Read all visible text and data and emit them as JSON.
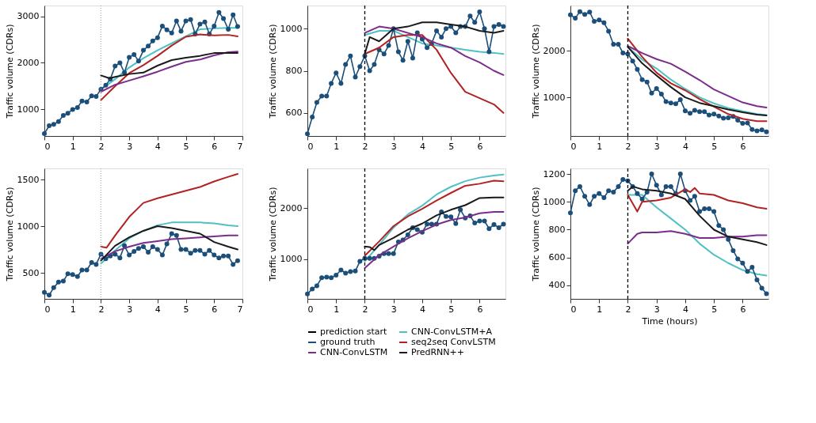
{
  "chart_data": [
    {
      "type": "line",
      "ylabel": "Traffic volume (CDRs)",
      "xlim": [
        0,
        7
      ],
      "xticks": [
        0,
        1,
        2,
        3,
        4,
        5,
        6,
        7
      ],
      "ylim": [
        430,
        3230
      ],
      "yticks": [
        1000,
        2000,
        3000
      ],
      "x": [
        0,
        0.17,
        0.33,
        0.5,
        0.67,
        0.83,
        1,
        1.17,
        1.33,
        1.5,
        1.67,
        1.83,
        2,
        2.17,
        2.33,
        2.5,
        2.67,
        2.83,
        3,
        3.17,
        3.33,
        3.5,
        3.67,
        3.83,
        4,
        4.17,
        4.33,
        4.5,
        4.67,
        4.83,
        5,
        5.17,
        5.33,
        5.5,
        5.67,
        5.83,
        6,
        6.17,
        6.33,
        6.5,
        6.67,
        6.83
      ],
      "ref_lines": [
        {
          "axis": "x",
          "value": 2,
          "color": "#aaaaaa",
          "line_style": "dotted"
        }
      ],
      "series": [
        {
          "color": "#4fc1c4",
          "x": [
            2,
            2.5,
            3,
            3.5,
            4,
            4.5,
            5,
            5.5,
            6,
            6.5,
            6.83
          ],
          "values": [
            1430,
            1650,
            1900,
            2100,
            2270,
            2420,
            2570,
            2720,
            2740,
            2750,
            2750
          ]
        },
        {
          "color": "#1b4f7a",
          "marker": "circle",
          "values": [
            480,
            650,
            680,
            740,
            870,
            920,
            1000,
            1040,
            1180,
            1160,
            1290,
            1280,
            1430,
            1520,
            1650,
            1930,
            2000,
            1790,
            2120,
            2180,
            2040,
            2270,
            2360,
            2470,
            2540,
            2790,
            2710,
            2640,
            2900,
            2680,
            2900,
            2930,
            2620,
            2830,
            2880,
            2620,
            2790,
            3080,
            2950,
            2720,
            3030,
            2780
          ]
        },
        {
          "color": "#b22222",
          "x": [
            2,
            2.5,
            3,
            3.5,
            4,
            4.5,
            5,
            5.5,
            6,
            6.5,
            6.83
          ],
          "values": [
            1200,
            1500,
            1780,
            1950,
            2150,
            2370,
            2560,
            2610,
            2590,
            2600,
            2570
          ]
        },
        {
          "color": "#7b2d8b",
          "x": [
            2,
            2.5,
            3,
            3.5,
            4,
            4.5,
            5,
            5.5,
            6,
            6.5,
            6.83
          ],
          "values": [
            1380,
            1530,
            1620,
            1710,
            1810,
            1920,
            2020,
            2070,
            2160,
            2230,
            2240
          ]
        },
        {
          "color": "#1a1a1a",
          "x": [
            2,
            2.3,
            2.5,
            3,
            3.5,
            4,
            4.5,
            5,
            5.5,
            6,
            6.5,
            6.83
          ],
          "values": [
            1730,
            1670,
            1700,
            1760,
            1790,
            1940,
            2060,
            2110,
            2150,
            2210,
            2210,
            2210
          ]
        }
      ]
    },
    {
      "type": "line",
      "ylabel": "Traffic volume (CDRs)",
      "xlim": [
        0,
        6.9
      ],
      "xticks": [
        0,
        1,
        2,
        3,
        4,
        5,
        6
      ],
      "ylim": [
        490,
        1110
      ],
      "yticks": [
        600,
        800,
        1000
      ],
      "x": [
        0,
        0.17,
        0.33,
        0.5,
        0.67,
        0.83,
        1,
        1.17,
        1.33,
        1.5,
        1.67,
        1.83,
        2,
        2.17,
        2.33,
        2.5,
        2.67,
        2.83,
        3,
        3.17,
        3.33,
        3.5,
        3.67,
        3.83,
        4,
        4.17,
        4.33,
        4.5,
        4.67,
        4.83,
        5,
        5.17,
        5.33,
        5.5,
        5.67,
        5.83,
        6,
        6.17,
        6.33,
        6.5,
        6.67,
        6.83
      ],
      "ref_lines": [
        {
          "axis": "x",
          "value": 2,
          "color": "#000000",
          "line_style": "dashed"
        }
      ],
      "series": [
        {
          "color": "#4fc1c4",
          "x": [
            2,
            2.5,
            3,
            3.5,
            4,
            4.5,
            5,
            5.5,
            6,
            6.5,
            6.83
          ],
          "values": [
            970,
            990,
            990,
            960,
            930,
            920,
            910,
            900,
            890,
            885,
            880
          ]
        },
        {
          "color": "#1b4f7a",
          "marker": "circle",
          "values": [
            500,
            580,
            650,
            680,
            680,
            740,
            790,
            740,
            830,
            870,
            770,
            820,
            870,
            800,
            830,
            900,
            880,
            920,
            1000,
            890,
            850,
            940,
            860,
            980,
            950,
            910,
            930,
            990,
            960,
            1000,
            1010,
            980,
            1010,
            1010,
            1060,
            1030,
            1080,
            1000,
            890,
            1010,
            1020,
            1010
          ]
        },
        {
          "color": "#b22222",
          "x": [
            2,
            2.5,
            3,
            3.5,
            4,
            4.5,
            5,
            5.5,
            6,
            6.5,
            6.83
          ],
          "values": [
            880,
            910,
            960,
            970,
            970,
            900,
            790,
            700,
            670,
            640,
            600
          ]
        },
        {
          "color": "#7b2d8b",
          "x": [
            2,
            2.5,
            3,
            3.5,
            4,
            4.5,
            5,
            5.5,
            6,
            6.5,
            6.83
          ],
          "values": [
            980,
            1010,
            1000,
            980,
            960,
            930,
            910,
            870,
            840,
            800,
            780
          ]
        },
        {
          "color": "#1a1a1a",
          "x": [
            2,
            2.17,
            2.5,
            3,
            3.5,
            4,
            4.5,
            5,
            5.5,
            6,
            6.5,
            6.83
          ],
          "values": [
            880,
            960,
            940,
            1000,
            1010,
            1030,
            1030,
            1020,
            1010,
            990,
            980,
            990
          ]
        }
      ]
    },
    {
      "type": "line",
      "ylabel": "Traffic volume (CDRs)",
      "xlim": [
        0,
        6.9
      ],
      "xticks": [
        0,
        1,
        2,
        3,
        4,
        5,
        6
      ],
      "ylim": [
        170,
        2970
      ],
      "yticks": [
        1000,
        2000
      ],
      "x": [
        0,
        0.17,
        0.33,
        0.5,
        0.67,
        0.83,
        1,
        1.17,
        1.33,
        1.5,
        1.67,
        1.83,
        2,
        2.17,
        2.33,
        2.5,
        2.67,
        2.83,
        3,
        3.17,
        3.33,
        3.5,
        3.67,
        3.83,
        4,
        4.17,
        4.33,
        4.5,
        4.67,
        4.83,
        5,
        5.17,
        5.33,
        5.5,
        5.67,
        5.83,
        6,
        6.17,
        6.33,
        6.5,
        6.67,
        6.83
      ],
      "ref_lines": [
        {
          "axis": "x",
          "value": 2,
          "color": "#000000",
          "line_style": "dashed"
        }
      ],
      "series": [
        {
          "color": "#4fc1c4",
          "x": [
            2,
            2.5,
            3,
            3.5,
            4,
            4.5,
            5,
            5.5,
            6,
            6.5,
            6.83
          ],
          "values": [
            2080,
            1810,
            1620,
            1380,
            1180,
            1000,
            870,
            770,
            700,
            640,
            620
          ]
        },
        {
          "color": "#1b4f7a",
          "marker": "circle",
          "values": [
            2770,
            2700,
            2840,
            2780,
            2830,
            2630,
            2660,
            2600,
            2420,
            2140,
            2140,
            1950,
            1930,
            1780,
            1600,
            1380,
            1330,
            1090,
            1190,
            1070,
            910,
            880,
            860,
            950,
            710,
            660,
            720,
            690,
            690,
            620,
            640,
            600,
            550,
            560,
            590,
            510,
            440,
            450,
            310,
            280,
            300,
            260
          ]
        },
        {
          "color": "#b22222",
          "x": [
            2,
            2.5,
            3,
            3.5,
            4,
            4.5,
            5,
            5.5,
            6,
            6.5,
            6.83
          ],
          "values": [
            2260,
            1870,
            1530,
            1300,
            1150,
            960,
            800,
            640,
            540,
            490,
            490
          ]
        },
        {
          "color": "#7b2d8b",
          "x": [
            2,
            2.5,
            3,
            3.5,
            4,
            4.5,
            5,
            5.5,
            6,
            6.5,
            6.83
          ],
          "values": [
            2100,
            1950,
            1820,
            1720,
            1550,
            1370,
            1170,
            1030,
            890,
            810,
            780
          ]
        },
        {
          "color": "#1a1a1a",
          "x": [
            2,
            2.5,
            3,
            3.5,
            4,
            4.5,
            5,
            5.5,
            6,
            6.5,
            6.83
          ],
          "values": [
            2080,
            1730,
            1470,
            1220,
            1000,
            880,
            810,
            740,
            680,
            630,
            610
          ]
        }
      ]
    },
    {
      "type": "line",
      "ylabel": "Traffic volume (CDRs)",
      "xlim": [
        0,
        7
      ],
      "xticks": [
        0,
        1,
        2,
        3,
        4,
        5,
        6,
        7
      ],
      "ylim": [
        220,
        1620
      ],
      "yticks": [
        500,
        1000,
        1500
      ],
      "x": [
        0,
        0.17,
        0.33,
        0.5,
        0.67,
        0.83,
        1,
        1.17,
        1.33,
        1.5,
        1.67,
        1.83,
        2,
        2.17,
        2.33,
        2.5,
        2.67,
        2.83,
        3,
        3.17,
        3.33,
        3.5,
        3.67,
        3.83,
        4,
        4.17,
        4.33,
        4.5,
        4.67,
        4.83,
        5,
        5.17,
        5.33,
        5.5,
        5.67,
        5.83,
        6,
        6.17,
        6.33,
        6.5,
        6.67,
        6.83
      ],
      "ref_lines": [
        {
          "axis": "x",
          "value": 2,
          "color": "#aaaaaa",
          "line_style": "dotted"
        }
      ],
      "series": [
        {
          "color": "#4fc1c4",
          "x": [
            2,
            2.5,
            3,
            3.5,
            4,
            4.5,
            5,
            5.5,
            6,
            6.5,
            6.83
          ],
          "values": [
            600,
            740,
            870,
            950,
            1010,
            1040,
            1040,
            1040,
            1030,
            1010,
            1000
          ]
        },
        {
          "color": "#1b4f7a",
          "marker": "circle",
          "values": [
            290,
            260,
            340,
            400,
            410,
            490,
            480,
            460,
            530,
            530,
            610,
            590,
            700,
            650,
            680,
            700,
            660,
            790,
            690,
            730,
            760,
            780,
            720,
            780,
            750,
            690,
            810,
            920,
            900,
            750,
            750,
            710,
            740,
            740,
            700,
            740,
            690,
            660,
            680,
            680,
            590,
            630
          ]
        },
        {
          "color": "#b22222",
          "x": [
            2,
            2.2,
            2.5,
            3,
            3.5,
            4,
            4.5,
            5,
            5.5,
            6,
            6.5,
            6.83
          ],
          "values": [
            780,
            770,
            900,
            1100,
            1250,
            1300,
            1340,
            1380,
            1420,
            1480,
            1530,
            1560
          ]
        },
        {
          "color": "#7b2d8b",
          "x": [
            2,
            2.5,
            3,
            3.5,
            4,
            4.5,
            5,
            5.5,
            6,
            6.5,
            6.83
          ],
          "values": [
            650,
            730,
            780,
            820,
            840,
            860,
            870,
            880,
            890,
            900,
            900
          ]
        },
        {
          "color": "#1a1a1a",
          "x": [
            2,
            2.5,
            3,
            3.5,
            4,
            4.5,
            5,
            5.5,
            6,
            6.5,
            6.83
          ],
          "values": [
            630,
            790,
            880,
            950,
            1000,
            980,
            950,
            920,
            830,
            780,
            750
          ]
        }
      ]
    },
    {
      "type": "line",
      "ylabel": "Traffic volume (CDRs)",
      "xlim": [
        0,
        6.9
      ],
      "xticks": [
        0,
        1,
        2,
        3,
        4,
        5,
        6
      ],
      "ylim": [
        225,
        2780
      ],
      "yticks": [
        1000,
        2000
      ],
      "legend": "bottom",
      "x": [
        0,
        0.17,
        0.33,
        0.5,
        0.67,
        0.83,
        1,
        1.17,
        1.33,
        1.5,
        1.67,
        1.83,
        2,
        2.17,
        2.33,
        2.5,
        2.67,
        2.83,
        3,
        3.17,
        3.33,
        3.5,
        3.67,
        3.83,
        4,
        4.17,
        4.33,
        4.5,
        4.67,
        4.83,
        5,
        5.17,
        5.33,
        5.5,
        5.67,
        5.83,
        6,
        6.17,
        6.33,
        6.5,
        6.67,
        6.83
      ],
      "ref_lines": [
        {
          "axis": "x",
          "value": 2,
          "label": "prediction start",
          "color": "#000000",
          "line_style": "dashed"
        }
      ],
      "series": [
        {
          "name": "CNN-ConvLSTM+A",
          "color": "#4fc1c4",
          "x": [
            2,
            2.5,
            3,
            3.5,
            4,
            4.5,
            5,
            5.5,
            6,
            6.5,
            6.83
          ],
          "values": [
            960,
            1280,
            1620,
            1880,
            2050,
            2270,
            2420,
            2530,
            2600,
            2640,
            2660
          ]
        },
        {
          "name": "ground truth",
          "color": "#1b4f7a",
          "marker": "circle",
          "values": [
            320,
            420,
            480,
            640,
            650,
            640,
            690,
            790,
            730,
            760,
            770,
            960,
            1020,
            1020,
            1020,
            1060,
            1110,
            1110,
            1110,
            1340,
            1380,
            1480,
            1620,
            1580,
            1530,
            1690,
            1690,
            1690,
            1930,
            1840,
            1830,
            1700,
            1970,
            1810,
            1850,
            1710,
            1750,
            1750,
            1600,
            1680,
            1620,
            1690
          ]
        },
        {
          "name": "seq2seq ConvLSTM",
          "color": "#b22222",
          "x": [
            2,
            2.5,
            3,
            3.5,
            4,
            4.5,
            5,
            5.5,
            6,
            6.5,
            6.83
          ],
          "values": [
            1070,
            1350,
            1650,
            1840,
            1990,
            2150,
            2300,
            2440,
            2480,
            2540,
            2530
          ]
        },
        {
          "name": "CNN-ConvLSTM",
          "color": "#7b2d8b",
          "x": [
            2,
            2.5,
            3,
            3.5,
            4,
            4.5,
            5,
            5.5,
            6,
            6.5,
            6.83
          ],
          "values": [
            830,
            1080,
            1250,
            1410,
            1550,
            1680,
            1770,
            1820,
            1900,
            1930,
            1930
          ]
        },
        {
          "name": "PredRNN++",
          "color": "#1a1a1a",
          "x": [
            2,
            2.17,
            2.33,
            2.5,
            3,
            3.5,
            4,
            4.5,
            5,
            5.5,
            6,
            6.5,
            6.83
          ],
          "values": [
            1250,
            1240,
            1180,
            1280,
            1420,
            1580,
            1700,
            1860,
            1970,
            2060,
            2200,
            2210,
            2210
          ]
        }
      ]
    },
    {
      "type": "line",
      "xlabel": "Time (hours)",
      "ylabel": "Traffic volume (CDRs)",
      "xlim": [
        0,
        6.9
      ],
      "xticks": [
        0,
        1,
        2,
        3,
        4,
        5,
        6
      ],
      "ylim": [
        303,
        1240
      ],
      "yticks": [
        400,
        600,
        800,
        1000,
        1200
      ],
      "x": [
        0,
        0.17,
        0.33,
        0.5,
        0.67,
        0.83,
        1,
        1.17,
        1.33,
        1.5,
        1.67,
        1.83,
        2,
        2.17,
        2.33,
        2.5,
        2.67,
        2.83,
        3,
        3.17,
        3.33,
        3.5,
        3.67,
        3.83,
        4,
        4.17,
        4.33,
        4.5,
        4.67,
        4.83,
        5,
        5.17,
        5.33,
        5.5,
        5.67,
        5.83,
        6,
        6.17,
        6.33,
        6.5,
        6.67,
        6.83
      ],
      "ref_lines": [
        {
          "axis": "x",
          "value": 2,
          "color": "#000000",
          "line_style": "dashed"
        }
      ],
      "series": [
        {
          "color": "#4fc1c4",
          "x": [
            2,
            2.5,
            3,
            3.5,
            4,
            4.5,
            5,
            5.5,
            6,
            6.5,
            6.83
          ],
          "values": [
            1050,
            1050,
            960,
            880,
            800,
            700,
            620,
            560,
            510,
            480,
            470
          ]
        },
        {
          "color": "#1b4f7a",
          "marker": "circle",
          "values": [
            920,
            1080,
            1110,
            1040,
            980,
            1040,
            1060,
            1030,
            1080,
            1070,
            1110,
            1160,
            1150,
            1110,
            1060,
            1020,
            1070,
            1200,
            1120,
            1050,
            1110,
            1110,
            1060,
            1200,
            1080,
            1010,
            1040,
            930,
            950,
            950,
            930,
            830,
            800,
            730,
            650,
            590,
            560,
            500,
            530,
            440,
            380,
            340
          ]
        },
        {
          "color": "#b22222",
          "x": [
            2,
            2.33,
            2.5,
            3,
            3.5,
            4,
            4.17,
            4.33,
            4.5,
            5,
            5.5,
            6,
            6.5,
            6.83
          ],
          "values": [
            1050,
            930,
            1000,
            1010,
            1030,
            1090,
            1070,
            1100,
            1060,
            1050,
            1010,
            990,
            960,
            950
          ]
        },
        {
          "color": "#7b2d8b",
          "x": [
            2,
            2.33,
            2.5,
            3,
            3.5,
            4,
            4.5,
            5,
            5.5,
            6,
            6.5,
            6.83
          ],
          "values": [
            700,
            770,
            780,
            780,
            790,
            770,
            740,
            740,
            750,
            750,
            760,
            760
          ]
        },
        {
          "color": "#1a1a1a",
          "x": [
            2,
            2.17,
            2.5,
            3,
            3.5,
            4,
            4.5,
            5,
            5.5,
            6,
            6.5,
            6.83
          ],
          "values": [
            1080,
            1110,
            1090,
            1080,
            1060,
            1020,
            900,
            800,
            750,
            730,
            710,
            690
          ]
        }
      ]
    }
  ]
}
